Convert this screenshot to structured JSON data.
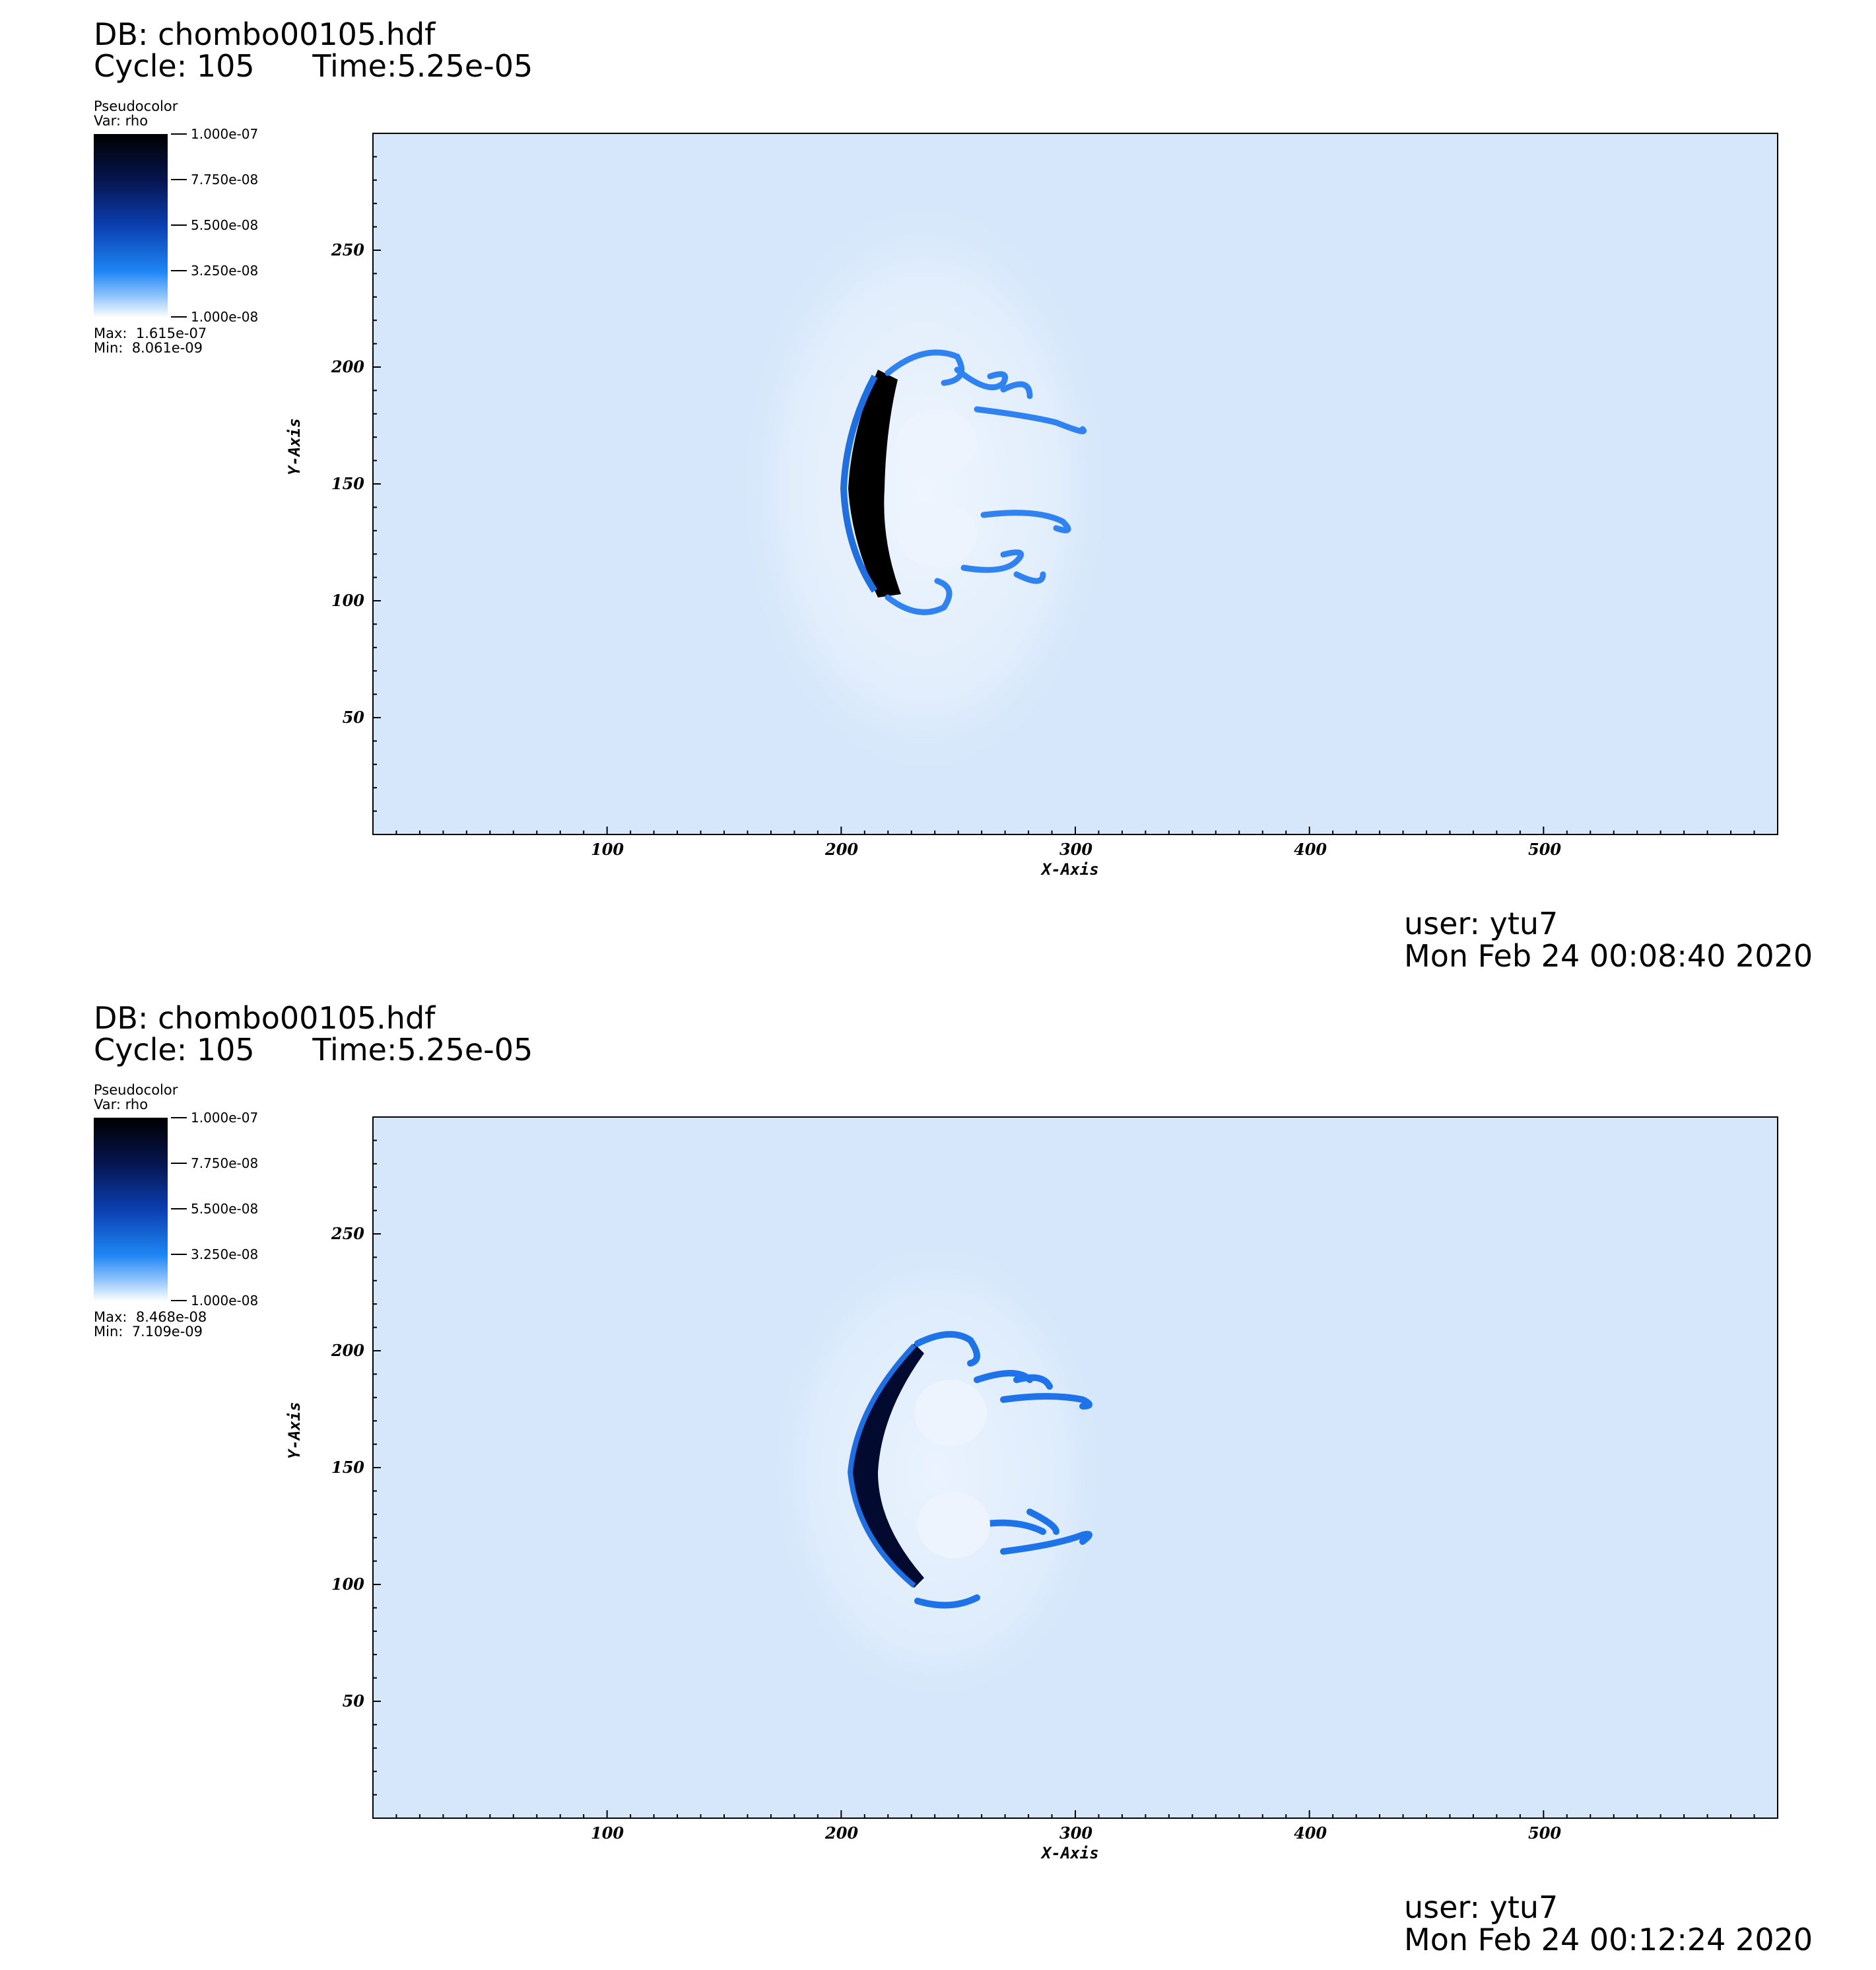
{
  "colors": {
    "background_field": "#d6e7fb",
    "colormap": [
      "#000000",
      "#06154f",
      "#0b3fb0",
      "#1f86f5",
      "#8cc2fb",
      "#ffffff"
    ]
  },
  "panels": [
    {
      "db_line": "DB: chombo00105.hdf",
      "cycle_line": "Cycle: 105      Time:5.25e-05",
      "legend_title": "Pseudocolor",
      "legend_var": "Var: rho",
      "legend_ticks": [
        "1.000e-07",
        "7.750e-08",
        "5.500e-08",
        "3.250e-08",
        "1.000e-08"
      ],
      "legend_max": "Max:  1.615e-07",
      "legend_min": "Min:  8.061e-09",
      "user": "user: ytu7",
      "date": "Mon Feb 24 00:08:40 2020",
      "chart_data": {
        "type": "heatmap",
        "variable": "rho",
        "xlabel": "X-Axis",
        "ylabel": "Y-Axis",
        "xlim": [
          0,
          600
        ],
        "ylim": [
          0,
          300
        ],
        "x_ticks": [
          100,
          200,
          300,
          400,
          500
        ],
        "y_ticks": [
          50,
          100,
          150,
          200,
          250
        ],
        "colorbar_range": [
          1e-08,
          1e-07
        ],
        "data_max": 1.615e-07,
        "data_min": 8.061e-09
      }
    },
    {
      "db_line": "DB: chombo00105.hdf",
      "cycle_line": "Cycle: 105      Time:5.25e-05",
      "legend_title": "Pseudocolor",
      "legend_var": "Var: rho",
      "legend_ticks": [
        "1.000e-07",
        "7.750e-08",
        "5.500e-08",
        "3.250e-08",
        "1.000e-08"
      ],
      "legend_max": "Max:  8.468e-08",
      "legend_min": "Min:  7.109e-09",
      "user": "user: ytu7",
      "date": "Mon Feb 24 00:12:24 2020",
      "chart_data": {
        "type": "heatmap",
        "variable": "rho",
        "xlabel": "X-Axis",
        "ylabel": "Y-Axis",
        "xlim": [
          0,
          600
        ],
        "ylim": [
          0,
          300
        ],
        "x_ticks": [
          100,
          200,
          300,
          400,
          500
        ],
        "y_ticks": [
          50,
          100,
          150,
          200,
          250
        ],
        "colorbar_range": [
          1e-08,
          1e-07
        ],
        "data_max": 8.468e-08,
        "data_min": 7.109e-09
      }
    }
  ]
}
